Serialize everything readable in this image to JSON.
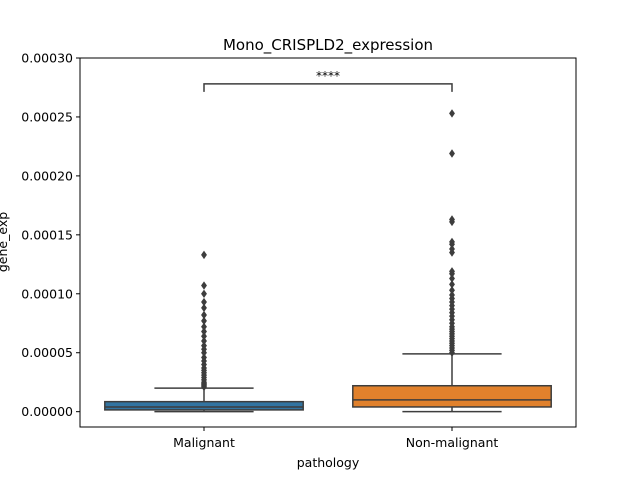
{
  "chart_data": {
    "type": "box",
    "title": "Mono_CRISPLD2_expression",
    "xlabel": "pathology",
    "ylabel": "gene_exp",
    "ylim": [
      -1.3e-05,
      0.0003
    ],
    "yticks": [
      0,
      5e-05,
      0.0001,
      0.00015,
      0.0002,
      0.00025,
      0.0003
    ],
    "ytick_labels": [
      "0.00000",
      "0.00005",
      "0.00010",
      "0.00015",
      "0.00020",
      "0.00025",
      "0.00030"
    ],
    "categories": [
      "Malignant",
      "Non-malignant"
    ],
    "grid": false,
    "boxes": [
      {
        "category": "Malignant",
        "color": "#3274a1",
        "whisker_low": 0.0,
        "q1": 1.5e-06,
        "median": 4e-06,
        "q3": 8.5e-06,
        "whisker_high": 2e-05,
        "outliers": [
          2.1e-05,
          2.2e-05,
          2.3e-05,
          2.4e-05,
          2.5e-05,
          2.7e-05,
          2.9e-05,
          3.1e-05,
          3.3e-05,
          3.5e-05,
          3.7e-05,
          4e-05,
          4.3e-05,
          4.6e-05,
          5e-05,
          5.3e-05,
          5.6e-05,
          6e-05,
          6.4e-05,
          6.8e-05,
          7.2e-05,
          7.7e-05,
          8.2e-05,
          8.8e-05,
          9.3e-05,
          0.0001,
          0.000107,
          0.000133
        ]
      },
      {
        "category": "Non-malignant",
        "color": "#e1812c",
        "whisker_low": 0.0,
        "q1": 4e-06,
        "median": 1e-05,
        "q3": 2.2e-05,
        "whisker_high": 4.9e-05,
        "outliers": [
          5e-05,
          5.2e-05,
          5.4e-05,
          5.6e-05,
          5.8e-05,
          6e-05,
          6.2e-05,
          6.4e-05,
          6.6e-05,
          6.8e-05,
          7e-05,
          7.2e-05,
          7.5e-05,
          7.8e-05,
          8.1e-05,
          8.4e-05,
          8.7e-05,
          9e-05,
          9.3e-05,
          9.6e-05,
          9.9e-05,
          0.000103,
          0.000108,
          0.000113,
          0.000117,
          0.000119,
          0.000135,
          0.000138,
          0.000142,
          0.000144,
          0.000161,
          0.000163,
          0.000219,
          0.000253
        ]
      }
    ],
    "significance": {
      "label": "****",
      "between": [
        "Malignant",
        "Non-malignant"
      ],
      "y": 0.000278
    }
  }
}
